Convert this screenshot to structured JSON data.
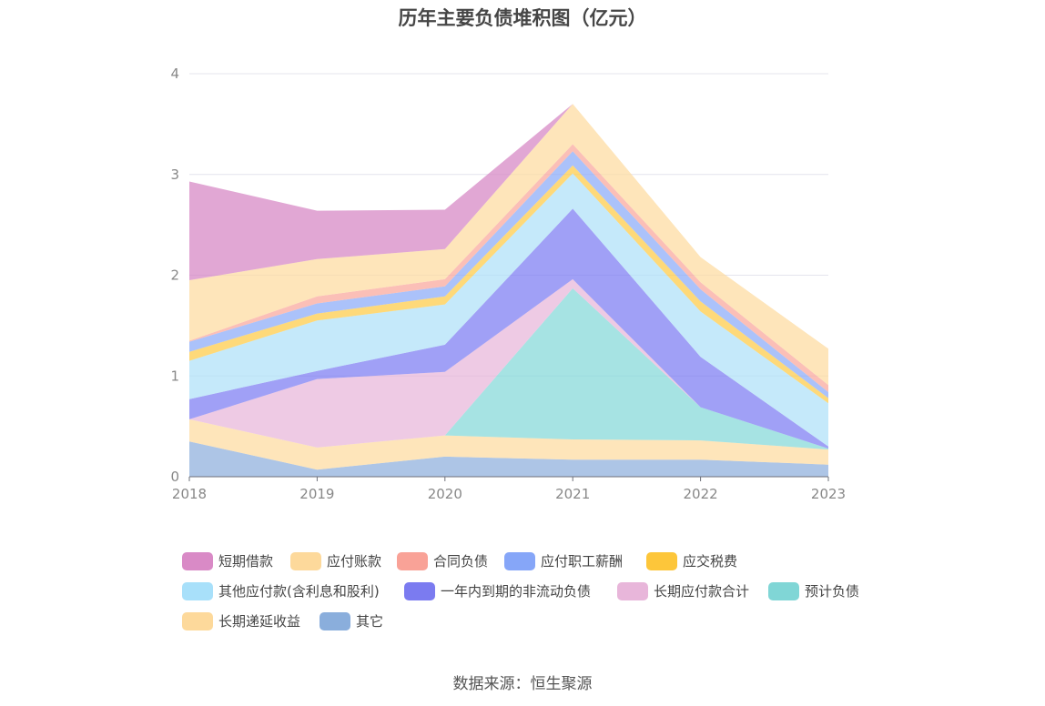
{
  "title": "历年主要负债堆积图（亿元）",
  "source": "数据来源：恒生聚源",
  "chart_data": {
    "type": "area",
    "stacked": true,
    "title": "历年主要负债堆积图（亿元）",
    "xlabel": "",
    "ylabel": "",
    "categories": [
      "2018",
      "2019",
      "2020",
      "2021",
      "2022",
      "2023"
    ],
    "ylim": [
      0,
      4
    ],
    "yticks": [
      0,
      1,
      2,
      3,
      4
    ],
    "grid": true,
    "legend_position": "bottom",
    "series": [
      {
        "name": "其它",
        "color": "#8eaedc",
        "values": [
          0.35,
          0.07,
          0.2,
          0.17,
          0.17,
          0.12
        ]
      },
      {
        "name": "长期递延收益",
        "color": "#fddba0",
        "values": [
          0.22,
          0.22,
          0.21,
          0.2,
          0.19,
          0.15
        ]
      },
      {
        "name": "预计负债",
        "color": "#84d8d8",
        "values": [
          0,
          0,
          0,
          1.5,
          0.33,
          0.01
        ]
      },
      {
        "name": "长期应付款合计",
        "color": "#e8b6da",
        "values": [
          0,
          0.68,
          0.63,
          0.09,
          0,
          0
        ]
      },
      {
        "name": "一年内到期的非流动负债",
        "color": "#7c7cf2",
        "values": [
          0.2,
          0.08,
          0.27,
          0.7,
          0.5,
          0.02
        ]
      },
      {
        "name": "其他应付款(含利息和股利)",
        "color": "#aee0f8",
        "values": [
          0.38,
          0.5,
          0.4,
          0.35,
          0.45,
          0.43
        ]
      },
      {
        "name": "应交税费",
        "color": "#fdca45",
        "values": [
          0.09,
          0.07,
          0.08,
          0.08,
          0.1,
          0.05
        ]
      },
      {
        "name": "应付职工薪酬",
        "color": "#8aaaf8",
        "values": [
          0.1,
          0.1,
          0.1,
          0.14,
          0.12,
          0.06
        ]
      },
      {
        "name": "合同负债",
        "color": "#f9a69b",
        "values": [
          0.01,
          0.07,
          0.07,
          0.07,
          0.07,
          0.07
        ]
      },
      {
        "name": "应付账款",
        "color": "#fddba0",
        "values": [
          0.6,
          0.37,
          0.3,
          0.4,
          0.25,
          0.36
        ]
      },
      {
        "name": "短期借款",
        "color": "#d685c4",
        "values": [
          0.98,
          0.48,
          0.39,
          0.0,
          0.0,
          0.0
        ]
      }
    ]
  },
  "legend": [
    {
      "name": "短期借款",
      "color": "#d98ac6"
    },
    {
      "name": "应付账款",
      "color": "#fdd99b"
    },
    {
      "name": "合同负债",
      "color": "#f9a297"
    },
    {
      "name": "应付职工薪酬",
      "color": "#86a6f8"
    },
    {
      "name": "应交税费",
      "color": "#fdc63a"
    },
    {
      "name": "其他应付款(含利息和股利)",
      "color": "#a8e0fa"
    },
    {
      "name": "一年内到期的非流动负债",
      "color": "#7b7bf0"
    },
    {
      "name": "长期应付款合计",
      "color": "#e8b6da"
    },
    {
      "name": "预计负债",
      "color": "#80d6d6"
    },
    {
      "name": "长期递延收益",
      "color": "#fdd99b"
    },
    {
      "name": "其它",
      "color": "#8aaedc"
    }
  ]
}
